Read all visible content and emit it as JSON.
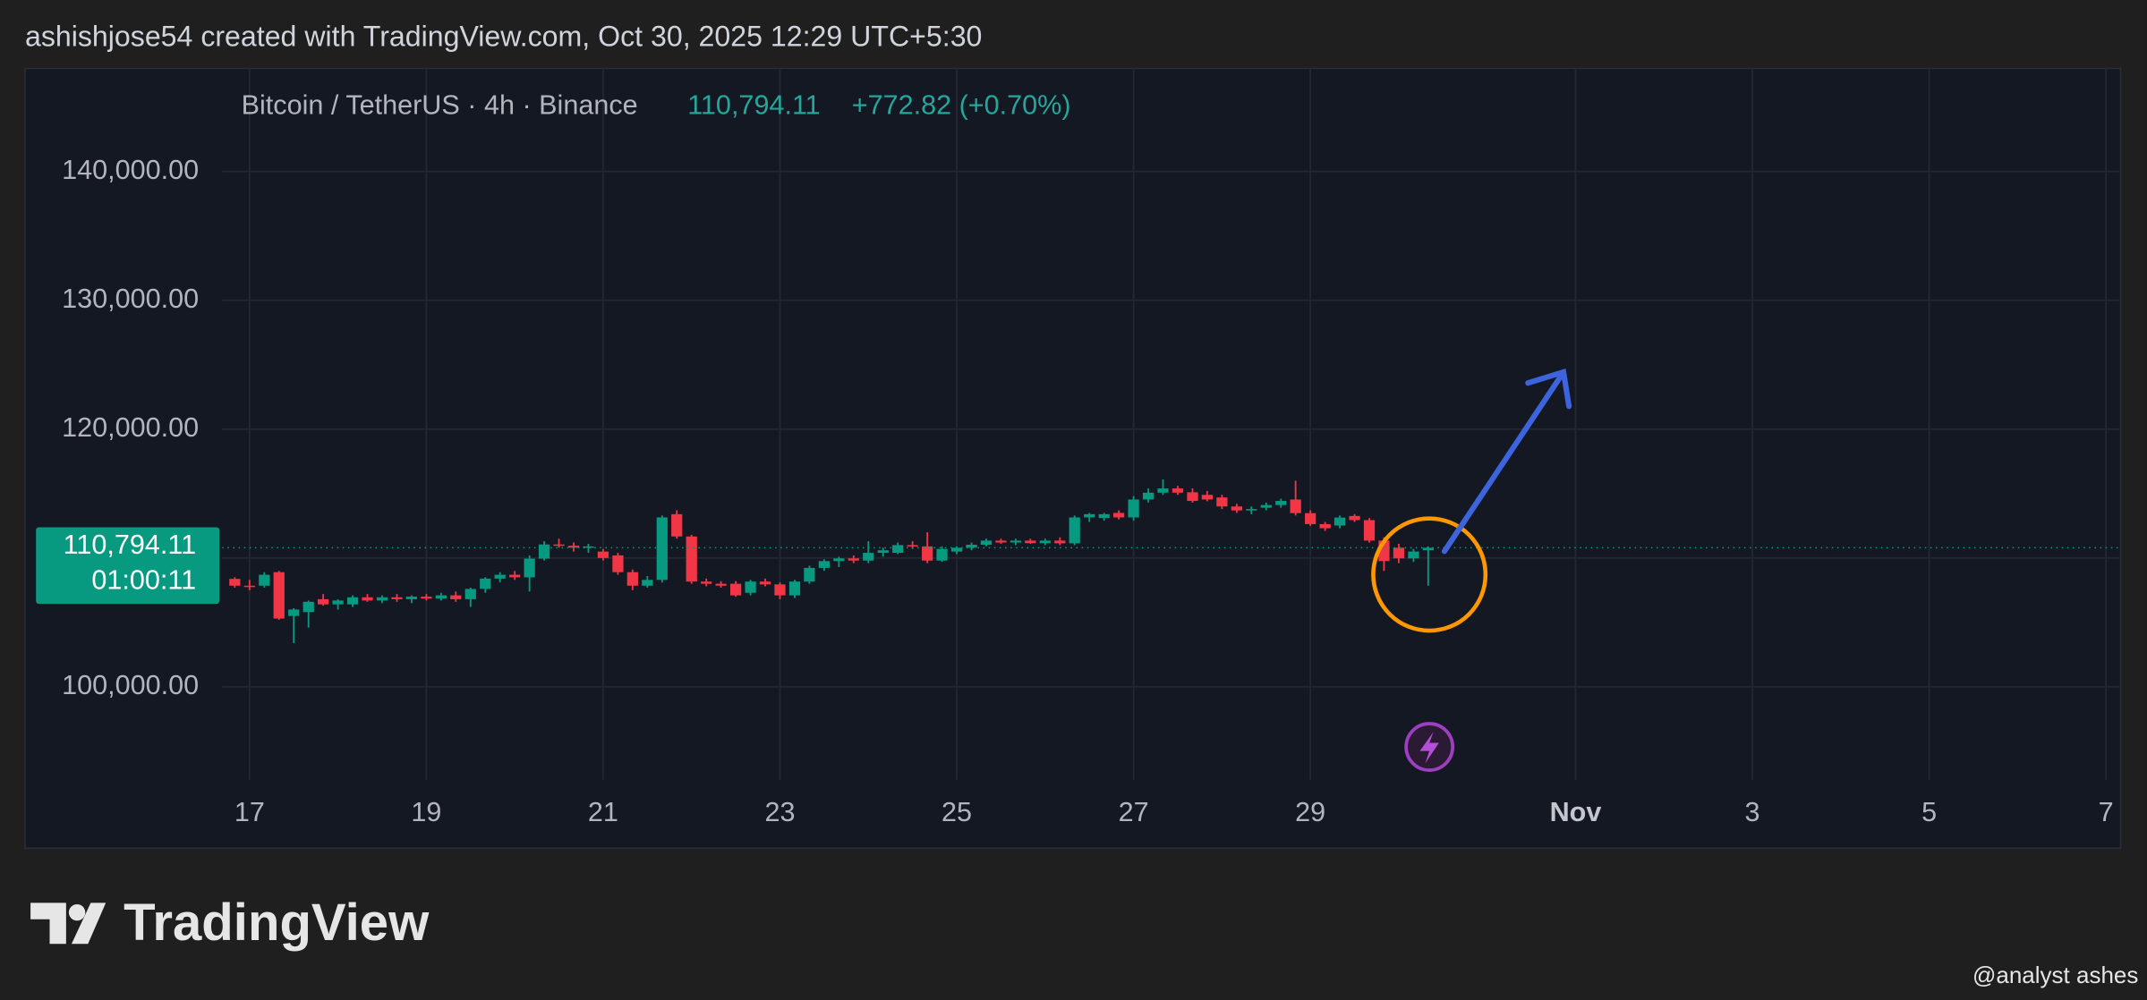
{
  "header": {
    "text": "ashishjose54 created with TradingView.com, Oct 30, 2025 12:29 UTC+5:30"
  },
  "chart_data": {
    "type": "candlestick",
    "title": "Bitcoin / TetherUS · 4h · Binance",
    "last_price": "110,794.11",
    "change": "+772.82 (+0.70%)",
    "countdown": "01:00:11",
    "up_color": "#089981",
    "down_color": "#f23645",
    "grid": true,
    "x": [
      16.833,
      17,
      17.167,
      17.333,
      17.5,
      17.667,
      17.833,
      18,
      18.167,
      18.333,
      18.5,
      18.667,
      18.833,
      19,
      19.167,
      19.333,
      19.5,
      19.667,
      19.833,
      20,
      20.167,
      20.333,
      20.5,
      20.667,
      20.833,
      21,
      21.167,
      21.333,
      21.5,
      21.667,
      21.833,
      22,
      22.167,
      22.333,
      22.5,
      22.667,
      22.833,
      23,
      23.167,
      23.333,
      23.5,
      23.667,
      23.833,
      24,
      24.167,
      24.333,
      24.5,
      24.667,
      24.833,
      25,
      25.167,
      25.333,
      25.5,
      25.667,
      25.833,
      26,
      26.167,
      26.333,
      26.5,
      26.667,
      26.833,
      27,
      27.167,
      27.333,
      27.5,
      27.667,
      27.833,
      28,
      28.167,
      28.333,
      28.5,
      28.667,
      28.833,
      29,
      29.167,
      29.333,
      29.5,
      29.667,
      29.833,
      30,
      30.167,
      30.333
    ],
    "open": [
      108380,
      107850,
      107850,
      108900,
      105500,
      105800,
      106800,
      106400,
      106400,
      106950,
      106700,
      106950,
      106800,
      107000,
      106850,
      107100,
      106800,
      107600,
      108400,
      108700,
      108500,
      109950,
      111050,
      110950,
      110800,
      110500,
      110200,
      108900,
      107850,
      108300,
      113400,
      111670,
      108170,
      108000,
      108000,
      107300,
      108170,
      107950,
      107100,
      108170,
      109230,
      109760,
      109970,
      109800,
      110400,
      110400,
      111000,
      110900,
      109800,
      110500,
      110800,
      111030,
      111350,
      111200,
      111350,
      111150,
      111350,
      111140,
      113150,
      113100,
      113500,
      113150,
      114540,
      115070,
      115400,
      115100,
      114900,
      114700,
      114000,
      113690,
      113900,
      114110,
      114540,
      113480,
      112630,
      112520,
      113260,
      112940,
      111350,
      110800,
      109970,
      110600
    ],
    "high": [
      108500,
      108300,
      108900,
      109000,
      106100,
      106700,
      107200,
      106800,
      107100,
      107200,
      107100,
      107200,
      107100,
      107200,
      107300,
      107400,
      107700,
      108500,
      108900,
      109000,
      110200,
      111300,
      111500,
      111200,
      111100,
      110700,
      110400,
      109100,
      108600,
      113300,
      113700,
      111800,
      108400,
      108200,
      108200,
      108300,
      108400,
      108100,
      108300,
      109400,
      109900,
      110100,
      110200,
      111300,
      110800,
      111200,
      111300,
      112000,
      110900,
      110900,
      111200,
      111500,
      111500,
      111500,
      111500,
      111500,
      111600,
      113300,
      113500,
      113500,
      113700,
      114800,
      115400,
      116100,
      115600,
      115400,
      115200,
      114900,
      114200,
      114000,
      114300,
      114600,
      116000,
      113700,
      112800,
      113300,
      113400,
      113100,
      111600,
      111100,
      110700,
      110900
    ],
    "low": [
      107700,
      107500,
      107700,
      105200,
      103400,
      104600,
      106300,
      106000,
      106200,
      106600,
      106500,
      106600,
      106500,
      106700,
      106700,
      106600,
      106200,
      107300,
      108100,
      108300,
      107400,
      109800,
      110800,
      110500,
      110400,
      109800,
      108700,
      107500,
      107700,
      108100,
      111500,
      108000,
      107800,
      107700,
      107000,
      107100,
      107800,
      106800,
      106900,
      108000,
      109000,
      109300,
      109600,
      109600,
      110100,
      110300,
      110700,
      109600,
      109700,
      110300,
      110600,
      110900,
      111100,
      111000,
      111100,
      111000,
      111000,
      111000,
      112800,
      112900,
      113000,
      112900,
      114300,
      114900,
      114900,
      114300,
      114400,
      113800,
      113500,
      113400,
      113700,
      113900,
      113300,
      112500,
      112100,
      112300,
      112800,
      111200,
      109000,
      109600,
      109700,
      107850
    ],
    "close": [
      107850,
      107750,
      108700,
      105300,
      106000,
      106600,
      106400,
      106700,
      106950,
      106700,
      106950,
      106800,
      107000,
      106850,
      107100,
      106800,
      107600,
      108400,
      108700,
      108500,
      109950,
      111050,
      110950,
      110800,
      110900,
      110000,
      108900,
      107850,
      108300,
      113150,
      111670,
      108170,
      108000,
      107850,
      107100,
      108170,
      107950,
      107100,
      108170,
      109230,
      109760,
      109970,
      109800,
      110400,
      110600,
      111000,
      110900,
      109800,
      110700,
      110800,
      111030,
      111350,
      111200,
      111350,
      111150,
      111350,
      111140,
      113150,
      113400,
      113400,
      113150,
      114540,
      115070,
      115400,
      115070,
      114430,
      114540,
      114000,
      113690,
      113800,
      114110,
      114430,
      113480,
      112630,
      112310,
      113140,
      112940,
      111350,
      109760,
      109970,
      110500,
      110794.11
    ],
    "xlim": [
      16.69,
      38.15
    ],
    "ylim": [
      93000,
      148000
    ],
    "xticks": [
      17,
      19,
      21,
      23,
      25,
      27,
      29,
      {
        "value": 32,
        "label": "Nov"
      },
      {
        "value": 34,
        "label": "3"
      },
      {
        "value": 36,
        "label": "5"
      },
      {
        "value": 38,
        "label": "7"
      }
    ],
    "yticks": [
      {
        "value": 100000,
        "label": "100,000.00"
      },
      {
        "value": 110000,
        "label": null
      },
      {
        "value": 120000,
        "label": "120,000.00"
      },
      {
        "value": 130000,
        "label": "130,000.00"
      },
      {
        "value": 140000,
        "label": "140,000.00"
      }
    ]
  },
  "footer": {
    "logo": "TradingView",
    "watermark": "@analyst ashes"
  }
}
